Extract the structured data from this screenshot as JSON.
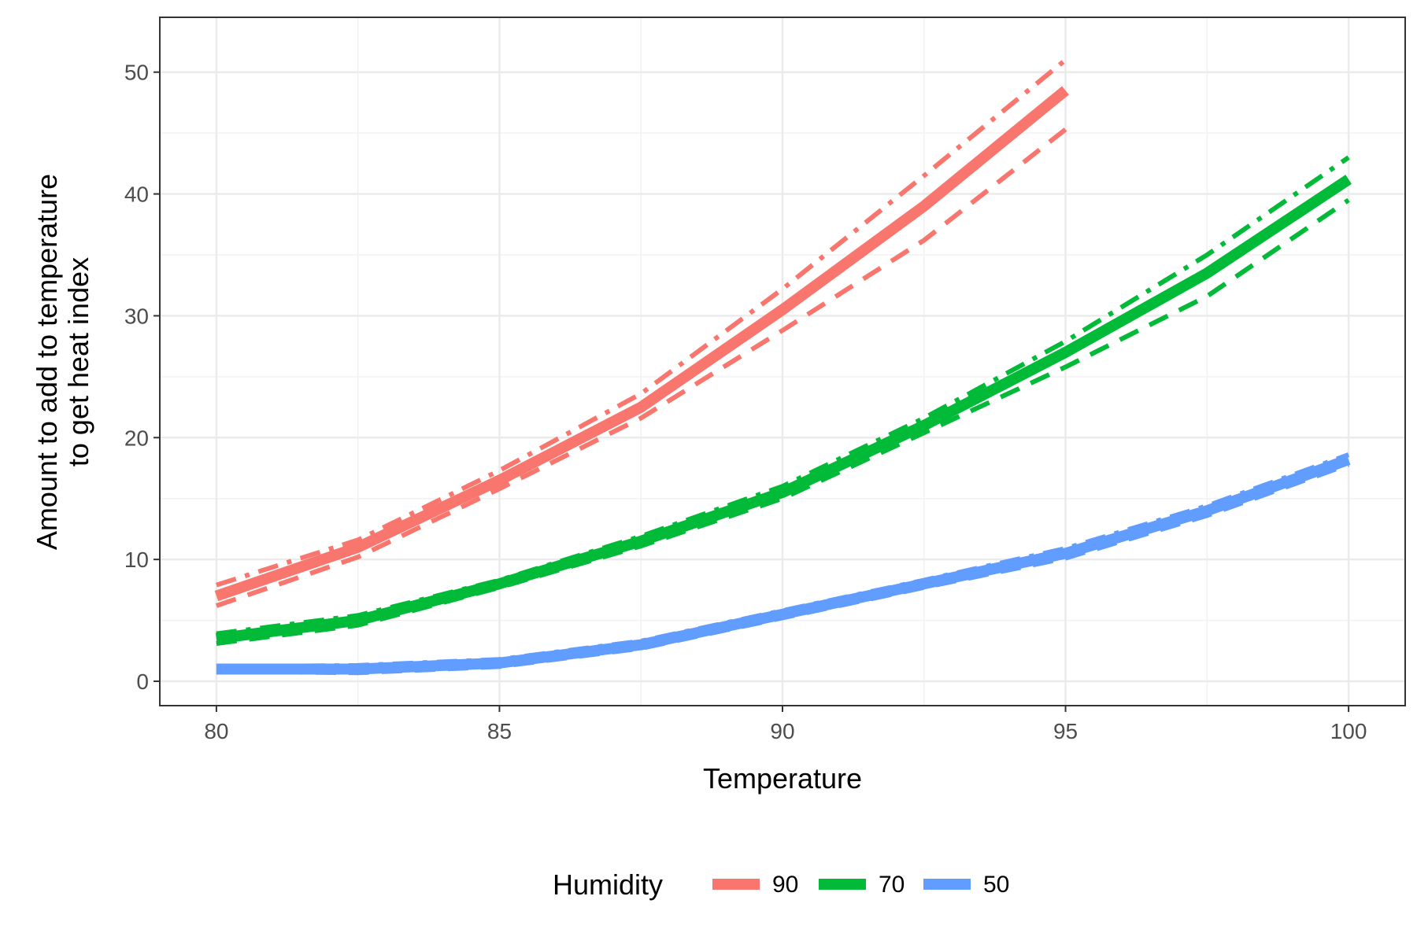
{
  "chart_data": {
    "type": "line",
    "xlabel": "Temperature",
    "ylabel_lines": [
      "Amount to add to temperature",
      "to get heat index"
    ],
    "xlim": [
      79,
      101
    ],
    "ylim": [
      -2,
      54.5
    ],
    "x_ticks": [
      80,
      85,
      90,
      95,
      100
    ],
    "y_ticks": [
      0,
      10,
      20,
      30,
      40,
      50
    ],
    "grid": true,
    "legend": {
      "title": "Humidity",
      "position": "bottom"
    },
    "series": [
      {
        "name": "90",
        "color": "#F8766D",
        "x": [
          80,
          82.5,
          85,
          87.5,
          90,
          92.5,
          95
        ],
        "y": [
          7,
          11,
          16.5,
          22.5,
          30.5,
          39,
          48.5
        ],
        "lower": [
          6.2,
          10.2,
          15.8,
          21.6,
          28.8,
          36.2,
          45.3
        ],
        "upper": [
          7.9,
          11.6,
          17.3,
          23.6,
          32.2,
          41.5,
          51
        ]
      },
      {
        "name": "70",
        "color": "#00BA38",
        "x": [
          80,
          82.5,
          85,
          87.5,
          90,
          92.5,
          95,
          97.5,
          100
        ],
        "y": [
          3.5,
          5,
          8,
          11.5,
          15.5,
          21,
          27,
          33.5,
          41.2
        ],
        "lower": [
          3.1,
          4.6,
          7.7,
          11.1,
          15,
          20.4,
          25.8,
          31.6,
          39.5
        ],
        "upper": [
          3.9,
          5.4,
          8.3,
          11.9,
          16,
          21.6,
          27.9,
          35,
          43
        ]
      },
      {
        "name": "50",
        "color": "#619CFF",
        "x": [
          80,
          82.5,
          85,
          87.5,
          90,
          92.5,
          95,
          97.5,
          100
        ],
        "y": [
          1,
          1,
          1.5,
          3,
          5.5,
          8,
          10.5,
          14,
          18.2
        ],
        "lower": [
          0.8,
          0.7,
          1.2,
          2.7,
          5.2,
          7.7,
          10.1,
          13.6,
          17.8
        ],
        "upper": [
          1.2,
          1.3,
          1.8,
          3.3,
          5.8,
          8.3,
          10.9,
          14.4,
          18.6
        ]
      }
    ]
  }
}
